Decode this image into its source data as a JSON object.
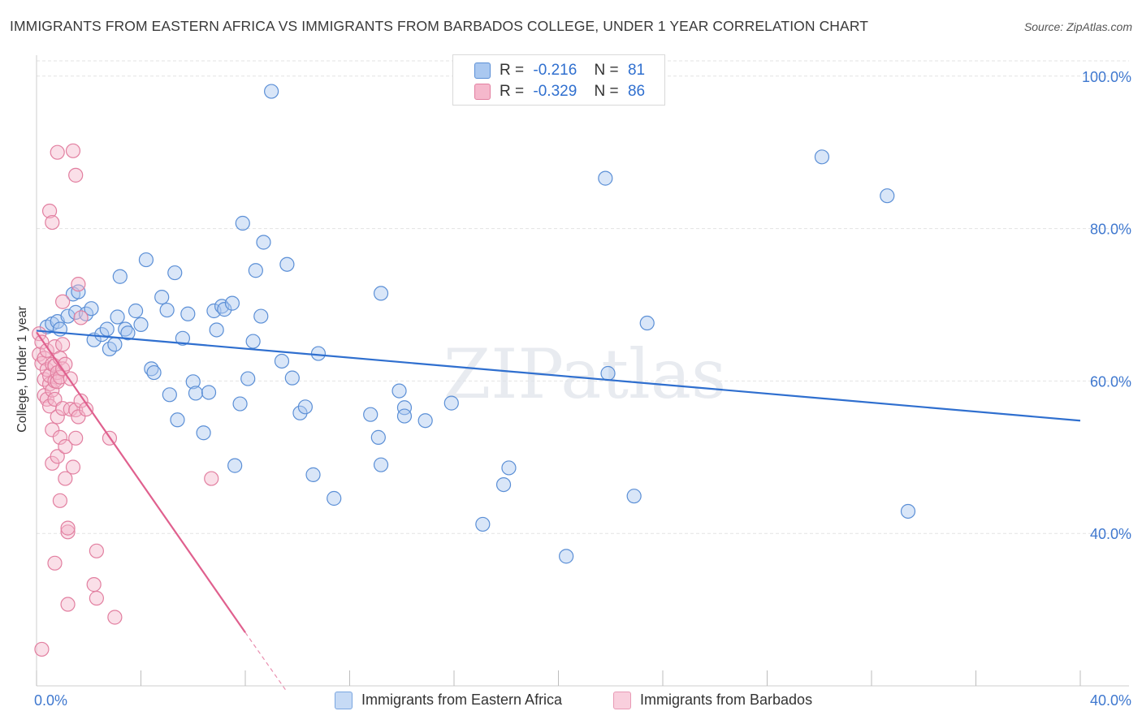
{
  "title": "IMMIGRANTS FROM EASTERN AFRICA VS IMMIGRANTS FROM BARBADOS COLLEGE, UNDER 1 YEAR CORRELATION CHART",
  "source": "Source: ZipAtlas.com",
  "watermark": "ZIPatlas",
  "legend_top": {
    "rows": [
      {
        "r_label": "R =",
        "r_value": "-0.216",
        "n_label": "N =",
        "n_value": "81"
      },
      {
        "r_label": "R =",
        "r_value": "-0.329",
        "n_label": "N =",
        "n_value": "86"
      }
    ]
  },
  "colors": {
    "blue_fill": "#aac8f0",
    "blue_stroke": "#5b8fd6",
    "blue_line": "#2f6fcf",
    "pink_fill": "#f5b8cc",
    "pink_stroke": "#e27fa0",
    "pink_line": "#e0608e",
    "grid": "#e3e3e3",
    "axis_text": "#3f78cf"
  },
  "chart_data": {
    "type": "scatter",
    "title": "IMMIGRANTS FROM EASTERN AFRICA VS IMMIGRANTS FROM BARBADOS COLLEGE, UNDER 1 YEAR CORRELATION CHART",
    "xlabel": "",
    "ylabel": "College, Under 1 year",
    "xlim": [
      0,
      40
    ],
    "ylim": [
      20,
      102
    ],
    "x_tick_labels": [
      "0.0%",
      "40.0%"
    ],
    "y_ticks": [
      40,
      60,
      80,
      100
    ],
    "y_tick_labels": [
      "40.0%",
      "60.0%",
      "80.0%",
      "100.0%"
    ],
    "grid": true,
    "legend_position": "bottom",
    "series": [
      {
        "name": "Immigrants from Eastern Africa",
        "color": "#5b8fd6",
        "r": -0.216,
        "n": 81,
        "trend": {
          "x": [
            0.0,
            40.0
          ],
          "y": [
            66.6,
            54.8
          ]
        },
        "points": [
          [
            0.4,
            67.1
          ],
          [
            0.6,
            67.5
          ],
          [
            0.8,
            67.8
          ],
          [
            0.9,
            66.8
          ],
          [
            1.2,
            68.5
          ],
          [
            1.4,
            71.4
          ],
          [
            1.5,
            69.0
          ],
          [
            1.6,
            71.7
          ],
          [
            1.9,
            68.8
          ],
          [
            2.1,
            69.5
          ],
          [
            2.2,
            65.4
          ],
          [
            2.5,
            66.1
          ],
          [
            2.7,
            66.8
          ],
          [
            2.8,
            64.2
          ],
          [
            3.0,
            64.8
          ],
          [
            3.1,
            68.4
          ],
          [
            3.2,
            73.7
          ],
          [
            3.4,
            66.8
          ],
          [
            3.5,
            66.3
          ],
          [
            3.8,
            69.2
          ],
          [
            4.0,
            67.4
          ],
          [
            4.2,
            75.9
          ],
          [
            4.4,
            61.6
          ],
          [
            4.5,
            61.1
          ],
          [
            4.8,
            71.0
          ],
          [
            5.0,
            69.3
          ],
          [
            5.1,
            58.2
          ],
          [
            5.3,
            74.2
          ],
          [
            5.4,
            54.9
          ],
          [
            5.6,
            65.6
          ],
          [
            5.8,
            68.8
          ],
          [
            6.0,
            59.9
          ],
          [
            6.1,
            58.4
          ],
          [
            6.4,
            53.2
          ],
          [
            6.6,
            58.5
          ],
          [
            6.8,
            69.2
          ],
          [
            6.9,
            66.7
          ],
          [
            7.1,
            69.8
          ],
          [
            7.2,
            69.4
          ],
          [
            7.5,
            70.2
          ],
          [
            7.6,
            48.9
          ],
          [
            7.8,
            57.0
          ],
          [
            7.9,
            80.7
          ],
          [
            8.1,
            60.3
          ],
          [
            8.3,
            65.2
          ],
          [
            8.4,
            74.5
          ],
          [
            8.6,
            68.5
          ],
          [
            8.7,
            78.2
          ],
          [
            9.0,
            98.0
          ],
          [
            9.4,
            62.6
          ],
          [
            9.6,
            75.3
          ],
          [
            9.8,
            60.4
          ],
          [
            10.1,
            55.8
          ],
          [
            10.3,
            56.6
          ],
          [
            10.6,
            47.7
          ],
          [
            10.8,
            63.6
          ],
          [
            11.4,
            44.6
          ],
          [
            12.8,
            55.6
          ],
          [
            13.1,
            52.6
          ],
          [
            13.2,
            71.5
          ],
          [
            13.2,
            49.0
          ],
          [
            13.9,
            58.7
          ],
          [
            14.1,
            56.5
          ],
          [
            14.1,
            55.4
          ],
          [
            14.9,
            54.8
          ],
          [
            15.9,
            57.1
          ],
          [
            17.1,
            41.2
          ],
          [
            17.9,
            46.4
          ],
          [
            18.1,
            48.6
          ],
          [
            20.3,
            37.0
          ],
          [
            21.8,
            86.6
          ],
          [
            21.9,
            61.0
          ],
          [
            22.9,
            44.9
          ],
          [
            23.4,
            67.6
          ],
          [
            30.1,
            89.4
          ],
          [
            32.6,
            84.3
          ],
          [
            33.4,
            42.9
          ]
        ]
      },
      {
        "name": "Immigrants from Barbados",
        "color": "#e27fa0",
        "r": -0.329,
        "n": 86,
        "trend": {
          "x": [
            0.0,
            8.0
          ],
          "y": [
            66.4,
            27.0
          ],
          "dashed_to": {
            "x": 9.6,
            "y": 19.2
          }
        },
        "points": [
          [
            0.1,
            66.2
          ],
          [
            0.1,
            63.5
          ],
          [
            0.2,
            65.1
          ],
          [
            0.2,
            62.3
          ],
          [
            0.3,
            60.2
          ],
          [
            0.3,
            58.1
          ],
          [
            0.3,
            63.0
          ],
          [
            0.4,
            61.5
          ],
          [
            0.4,
            57.6
          ],
          [
            0.4,
            64.0
          ],
          [
            0.5,
            59.6
          ],
          [
            0.5,
            56.7
          ],
          [
            0.5,
            60.7
          ],
          [
            0.6,
            62.2
          ],
          [
            0.6,
            58.8
          ],
          [
            0.6,
            53.6
          ],
          [
            0.6,
            49.2
          ],
          [
            0.5,
            82.3
          ],
          [
            0.6,
            80.8
          ],
          [
            0.7,
            36.1
          ],
          [
            0.7,
            60.0
          ],
          [
            0.7,
            62.0
          ],
          [
            0.7,
            64.5
          ],
          [
            0.7,
            57.6
          ],
          [
            0.8,
            90.0
          ],
          [
            0.8,
            55.3
          ],
          [
            0.8,
            61.1
          ],
          [
            0.8,
            59.9
          ],
          [
            0.8,
            50.1
          ],
          [
            0.9,
            63.0
          ],
          [
            0.9,
            52.6
          ],
          [
            0.9,
            44.3
          ],
          [
            0.9,
            60.5
          ],
          [
            1.0,
            56.4
          ],
          [
            1.0,
            64.8
          ],
          [
            1.0,
            61.6
          ],
          [
            1.0,
            70.4
          ],
          [
            1.1,
            47.2
          ],
          [
            1.1,
            51.4
          ],
          [
            1.1,
            62.2
          ],
          [
            1.2,
            40.2
          ],
          [
            1.2,
            40.7
          ],
          [
            1.2,
            30.7
          ],
          [
            1.3,
            60.3
          ],
          [
            1.3,
            56.3
          ],
          [
            1.4,
            90.2
          ],
          [
            1.4,
            48.7
          ],
          [
            1.5,
            87.0
          ],
          [
            1.5,
            56.2
          ],
          [
            1.5,
            52.5
          ],
          [
            1.6,
            72.7
          ],
          [
            1.6,
            55.3
          ],
          [
            1.7,
            57.4
          ],
          [
            1.7,
            68.3
          ],
          [
            1.9,
            56.3
          ],
          [
            2.2,
            33.3
          ],
          [
            2.3,
            31.5
          ],
          [
            2.3,
            37.7
          ],
          [
            2.8,
            52.5
          ],
          [
            3.0,
            29.0
          ],
          [
            6.7,
            47.2
          ],
          [
            0.2,
            24.8
          ]
        ]
      }
    ]
  }
}
